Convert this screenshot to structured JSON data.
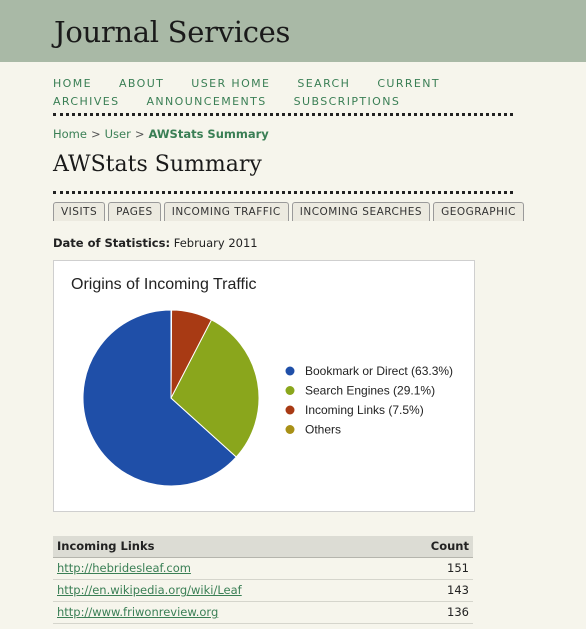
{
  "site": {
    "title": "Journal Services"
  },
  "nav": {
    "items": [
      "HOME",
      "ABOUT",
      "USER HOME",
      "SEARCH",
      "CURRENT",
      "ARCHIVES",
      "ANNOUNCEMENTS",
      "SUBSCRIPTIONS"
    ]
  },
  "breadcrumb": {
    "home": "Home",
    "sep": ">",
    "user": "User",
    "current": "AWStats Summary"
  },
  "page": {
    "title": "AWStats Summary"
  },
  "tabs": [
    "VISITS",
    "PAGES",
    "INCOMING TRAFFIC",
    "INCOMING SEARCHES",
    "GEOGRAPHIC"
  ],
  "stats": {
    "date_label": "Date of Statistics:",
    "date_value": "February 2011"
  },
  "chart_data": {
    "type": "pie",
    "title": "Origins of Incoming Traffic",
    "legend_position": "right",
    "slices": [
      {
        "label": "Bookmark or Direct (63.3%)",
        "value": 63.3,
        "color": "#1f4fa8"
      },
      {
        "label": "Search Engines (29.1%)",
        "value": 29.1,
        "color": "#8aa61c"
      },
      {
        "label": "Incoming Links (7.5%)",
        "value": 7.5,
        "color": "#a83a14"
      },
      {
        "label": "Others",
        "value": 0.1,
        "color": "#a89016"
      }
    ]
  },
  "incoming_links": {
    "headers": {
      "name": "Incoming Links",
      "count": "Count"
    },
    "rows": [
      {
        "url": "http://hebridesleaf.com",
        "count": "151"
      },
      {
        "url": "http://en.wikipedia.org/wiki/Leaf",
        "count": "143"
      },
      {
        "url": "http://www.friwonreview.org",
        "count": "136"
      }
    ]
  }
}
